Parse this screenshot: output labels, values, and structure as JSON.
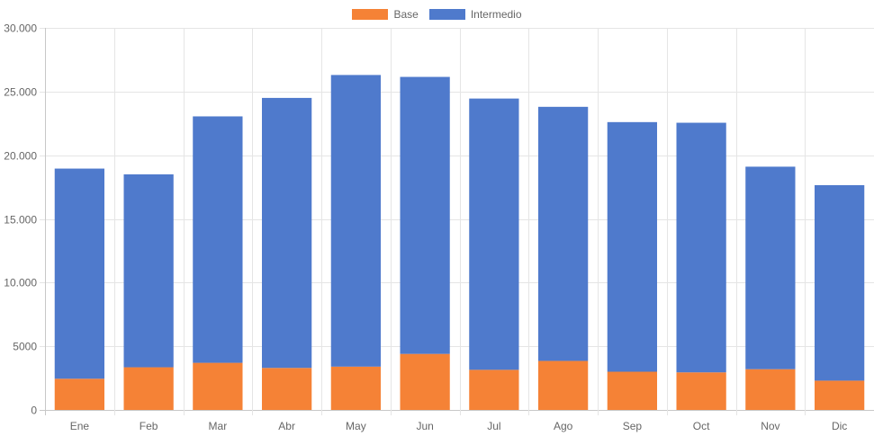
{
  "chart_data": {
    "type": "bar",
    "stacked": true,
    "categories": [
      "Ene",
      "Feb",
      "Mar",
      "Abr",
      "May",
      "Jun",
      "Jul",
      "Ago",
      "Sep",
      "Oct",
      "Nov",
      "Dic"
    ],
    "series": [
      {
        "name": "Base",
        "color": "#f58236",
        "values": [
          2450,
          3350,
          3700,
          3300,
          3400,
          4400,
          3150,
          3850,
          3000,
          2950,
          3200,
          2300
        ]
      },
      {
        "name": "Intermedio",
        "color": "#4f7acc",
        "values": [
          16500,
          15150,
          19350,
          21200,
          22900,
          21750,
          21300,
          19950,
          19600,
          19600,
          15900,
          15350
        ]
      }
    ],
    "ylim": [
      0,
      30000
    ],
    "yticks": [
      0,
      5000,
      10000,
      15000,
      20000,
      25000,
      30000
    ],
    "ytick_labels": [
      "0",
      "5000",
      "10.000",
      "15.000",
      "20.000",
      "25.000",
      "30.000"
    ],
    "grid": true,
    "legend_position": "top-center",
    "title": "",
    "xlabel": "",
    "ylabel": ""
  }
}
